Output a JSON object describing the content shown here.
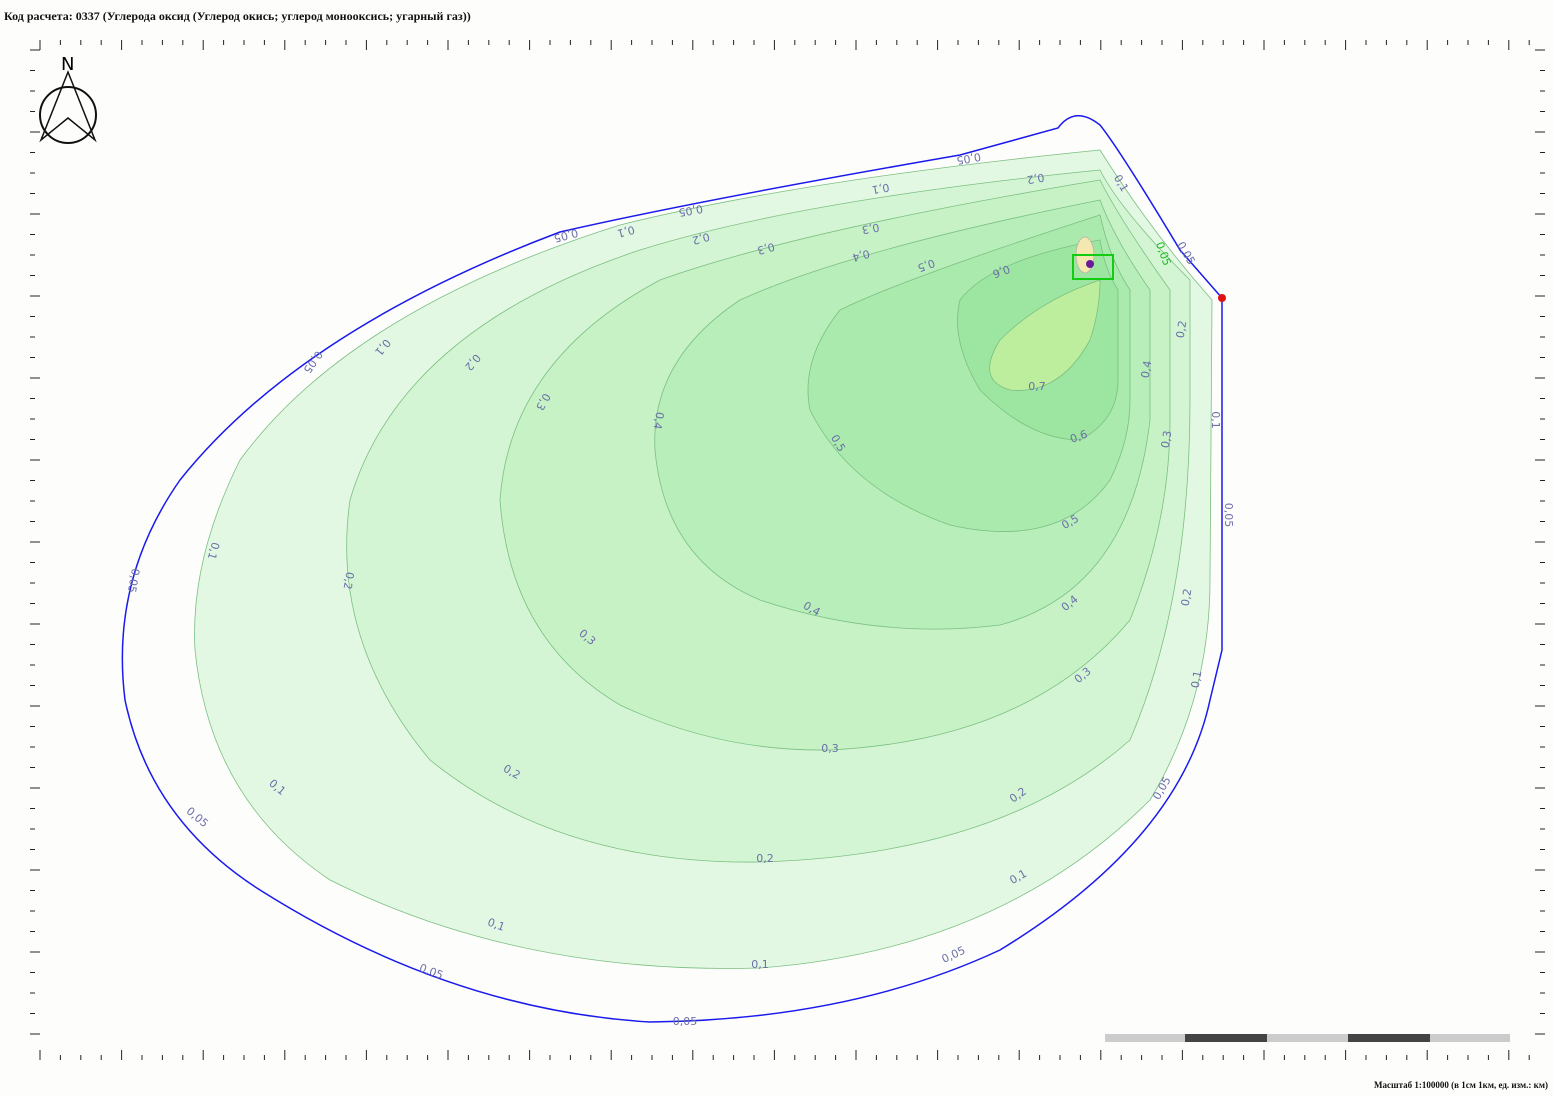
{
  "header": {
    "title": "Код расчета: 0337 (Углерода оксид (Углерод окись; углерод монооксись; угарный газ))"
  },
  "footer": {
    "scale": "Масштаб 1:100000 (в 1см 1км, ед. изм.: км)"
  },
  "compass": "N",
  "contours": [
    {
      "label": "0,05"
    },
    {
      "label": "0,1"
    },
    {
      "label": "0,2"
    },
    {
      "label": "0,3"
    },
    {
      "label": "0,4"
    },
    {
      "label": "0,5"
    },
    {
      "label": "0,6"
    },
    {
      "label": "0,7"
    }
  ]
}
